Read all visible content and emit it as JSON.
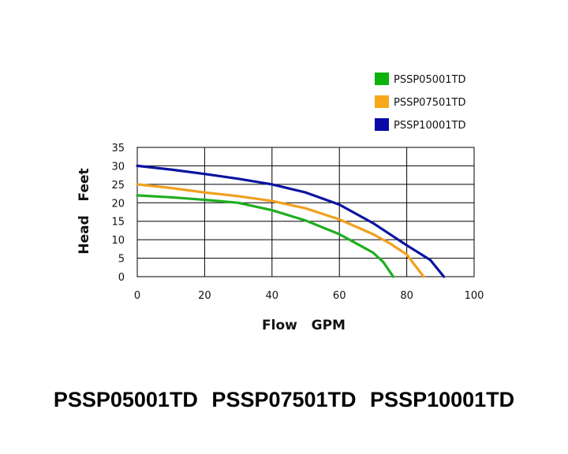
{
  "chart_data": {
    "type": "line",
    "title": "",
    "xlabel": "Flow   GPM",
    "ylabel": "Head   Feet",
    "xlim": [
      0,
      100
    ],
    "ylim": [
      0,
      35
    ],
    "xticks": [
      0,
      20,
      40,
      60,
      80,
      100
    ],
    "yticks": [
      0,
      5,
      10,
      15,
      20,
      25,
      30,
      35
    ],
    "grid": true,
    "legend_position": "top-right",
    "series": [
      {
        "name": "PSSP05001TD",
        "color": "#1fae1f",
        "x": [
          0,
          10,
          20,
          30,
          40,
          50,
          60,
          65,
          70,
          73,
          76
        ],
        "y": [
          22,
          21.5,
          20.8,
          20,
          18,
          15.2,
          11.5,
          9,
          6.5,
          4,
          0
        ]
      },
      {
        "name": "PSSP07501TD",
        "color": "#f0a020",
        "x": [
          0,
          10,
          20,
          30,
          40,
          50,
          60,
          70,
          75,
          80,
          85
        ],
        "y": [
          25,
          24,
          22.8,
          21.8,
          20.5,
          18.5,
          15.5,
          11.5,
          9,
          6,
          0
        ]
      },
      {
        "name": "PSSP10001TD",
        "color": "#0a14a0",
        "x": [
          0,
          10,
          20,
          30,
          40,
          50,
          60,
          70,
          80,
          87,
          91
        ],
        "y": [
          30,
          29,
          27.8,
          26.5,
          25,
          22.8,
          19.5,
          14.5,
          8.5,
          4.5,
          0
        ]
      }
    ]
  },
  "legend_swatches": [
    "#0db20d",
    "#f7a81b",
    "#0a0aa8"
  ],
  "footer": {
    "models_text": "PSSP05001TD  PSSP07501TD  PSSP10001TD"
  }
}
